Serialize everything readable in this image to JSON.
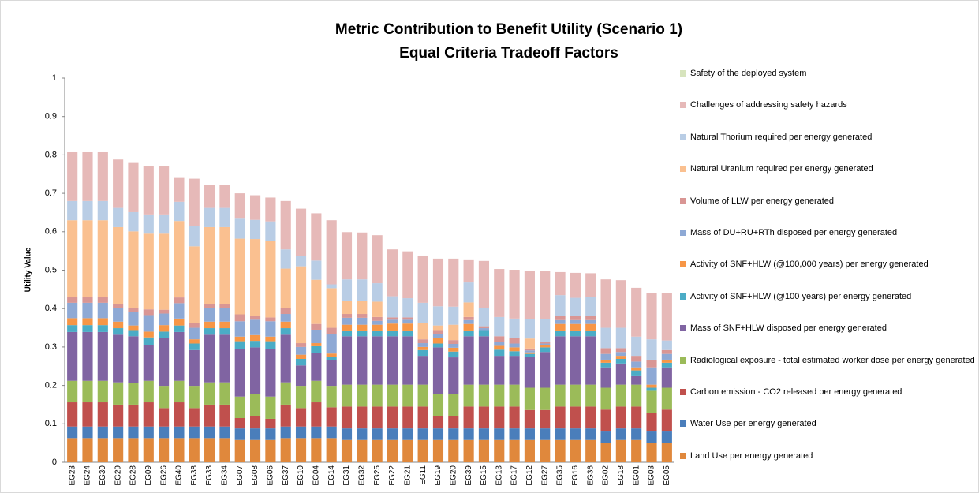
{
  "chart_data": {
    "type": "stacked_bar",
    "title": "Metric Contribution to Benefit Utility (Scenario 1)",
    "subtitle": "Equal Criteria Tradeoff Factors",
    "y_label": "Utility Value",
    "ylim": [
      0,
      1
    ],
    "yticks": [
      0,
      0.1,
      0.2,
      0.3,
      0.4,
      0.5,
      0.6,
      0.7,
      0.8,
      0.9,
      1
    ],
    "grid": false,
    "legend": "right",
    "categories": [
      "EG23",
      "EG24",
      "EG30",
      "EG29",
      "EG28",
      "EG09",
      "EG26",
      "EG40",
      "EG38",
      "EG33",
      "EG34",
      "EG07",
      "EG08",
      "EG06",
      "EG37",
      "EG10",
      "EG04",
      "EG14",
      "EG31",
      "EG32",
      "EG25",
      "EG22",
      "EG21",
      "EG11",
      "EG19",
      "EG20",
      "EG39",
      "EG15",
      "EG13",
      "EG17",
      "EG12",
      "EG27",
      "EG35",
      "EG16",
      "EG36",
      "EG02",
      "EG18",
      "EG01",
      "EG03",
      "EG05"
    ],
    "series": [
      {
        "name": "Land Use per energy generated",
        "color": "#e0883c",
        "values": [
          0.063,
          0.063,
          0.063,
          0.063,
          0.063,
          0.063,
          0.063,
          0.063,
          0.063,
          0.063,
          0.063,
          0.058,
          0.058,
          0.058,
          0.063,
          0.063,
          0.063,
          0.063,
          0.058,
          0.058,
          0.058,
          0.058,
          0.058,
          0.058,
          0.058,
          0.058,
          0.058,
          0.058,
          0.058,
          0.058,
          0.058,
          0.058,
          0.058,
          0.058,
          0.058,
          0.05,
          0.058,
          0.058,
          0.05,
          0.05
        ]
      },
      {
        "name": "Water Use per energy generated",
        "color": "#4a7ebb",
        "values": [
          0.03,
          0.03,
          0.03,
          0.03,
          0.03,
          0.03,
          0.03,
          0.03,
          0.03,
          0.03,
          0.03,
          0.03,
          0.03,
          0.03,
          0.03,
          0.03,
          0.03,
          0.03,
          0.03,
          0.03,
          0.03,
          0.03,
          0.03,
          0.03,
          0.03,
          0.03,
          0.03,
          0.03,
          0.03,
          0.03,
          0.03,
          0.03,
          0.03,
          0.03,
          0.03,
          0.03,
          0.03,
          0.03,
          0.03,
          0.03
        ]
      },
      {
        "name": "Carbon emission - CO2 released per energy generated",
        "color": "#c0504d",
        "values": [
          0.063,
          0.063,
          0.063,
          0.057,
          0.057,
          0.063,
          0.048,
          0.063,
          0.048,
          0.057,
          0.057,
          0.027,
          0.032,
          0.025,
          0.057,
          0.048,
          0.063,
          0.05,
          0.057,
          0.057,
          0.057,
          0.057,
          0.057,
          0.057,
          0.032,
          0.032,
          0.057,
          0.057,
          0.057,
          0.057,
          0.048,
          0.048,
          0.057,
          0.057,
          0.057,
          0.057,
          0.057,
          0.057,
          0.048,
          0.057
        ]
      },
      {
        "name": "Radiological exposure - total estimated worker dose per energy generated",
        "color": "#9bbb59",
        "values": [
          0.056,
          0.056,
          0.056,
          0.058,
          0.057,
          0.056,
          0.058,
          0.056,
          0.058,
          0.058,
          0.058,
          0.056,
          0.058,
          0.058,
          0.058,
          0.058,
          0.056,
          0.056,
          0.057,
          0.057,
          0.057,
          0.057,
          0.057,
          0.057,
          0.058,
          0.058,
          0.057,
          0.057,
          0.057,
          0.057,
          0.058,
          0.058,
          0.057,
          0.057,
          0.057,
          0.057,
          0.057,
          0.057,
          0.058,
          0.057
        ]
      },
      {
        "name": "Mass of SNF+HLW disposed per energy generated",
        "color": "#8064a2",
        "values": [
          0.127,
          0.127,
          0.127,
          0.124,
          0.121,
          0.093,
          0.124,
          0.127,
          0.093,
          0.124,
          0.124,
          0.124,
          0.121,
          0.124,
          0.124,
          0.053,
          0.073,
          0.066,
          0.126,
          0.126,
          0.126,
          0.126,
          0.126,
          0.075,
          0.121,
          0.095,
          0.126,
          0.126,
          0.075,
          0.075,
          0.08,
          0.093,
          0.126,
          0.126,
          0.126,
          0.053,
          0.055,
          0.022,
          0,
          0.053
        ]
      },
      {
        "name": "Activity of SNF+HLW (@100 years) per energy generated",
        "color": "#4bacc6",
        "values": [
          0.018,
          0.018,
          0.018,
          0.017,
          0.016,
          0.02,
          0.017,
          0.017,
          0.017,
          0.017,
          0.017,
          0.02,
          0.017,
          0.02,
          0.017,
          0.017,
          0.017,
          0.01,
          0.015,
          0.015,
          0.015,
          0.015,
          0.015,
          0.015,
          0.01,
          0.015,
          0.015,
          0.016,
          0.016,
          0.012,
          0.008,
          0.012,
          0.015,
          0.015,
          0.015,
          0.012,
          0.012,
          0.015,
          0.008,
          0.012
        ]
      },
      {
        "name": "Activity of SNF+HLW (@100,000 years) per energy generated",
        "color": "#f79646",
        "values": [
          0.018,
          0.018,
          0.018,
          0.017,
          0.012,
          0.015,
          0.017,
          0.018,
          0.011,
          0.017,
          0.017,
          0.012,
          0.015,
          0.012,
          0.017,
          0.011,
          0.008,
          0.008,
          0.015,
          0.015,
          0.015,
          0.018,
          0.018,
          0.008,
          0.015,
          0.01,
          0.017,
          0,
          0.01,
          0.01,
          0.004,
          0.005,
          0.017,
          0.017,
          0.017,
          0.008,
          0.008,
          0.008,
          0.008,
          0.008
        ]
      },
      {
        "name": "Mass of DU+RU+RTh  disposed per energy generated",
        "color": "#8ea9d5",
        "values": [
          0.04,
          0.04,
          0.04,
          0.036,
          0.035,
          0.043,
          0.03,
          0.04,
          0.03,
          0.036,
          0.036,
          0.04,
          0.04,
          0.04,
          0.02,
          0.02,
          0.035,
          0.05,
          0.018,
          0.018,
          0.01,
          0.01,
          0.01,
          0.01,
          0.01,
          0.01,
          0.01,
          0.005,
          0.01,
          0.01,
          0.005,
          0.005,
          0.01,
          0.01,
          0.01,
          0.015,
          0.01,
          0.015,
          0.045,
          0.015
        ]
      },
      {
        "name": "Volume of LLW per energy generated",
        "color": "#d99694",
        "values": [
          0.015,
          0.015,
          0.015,
          0.01,
          0.01,
          0.015,
          0.01,
          0.015,
          0.012,
          0.01,
          0.01,
          0.018,
          0.01,
          0.01,
          0.015,
          0.01,
          0.015,
          0.017,
          0.01,
          0.01,
          0.01,
          0.006,
          0.006,
          0.01,
          0.01,
          0.01,
          0.008,
          0.005,
          0.015,
          0.015,
          0.005,
          0.005,
          0.01,
          0.01,
          0.01,
          0.015,
          0.01,
          0.015,
          0.02,
          0.01
        ]
      },
      {
        "name": "Natural Uranium required per energy generated",
        "color": "#fac090",
        "values": [
          0.2,
          0.2,
          0.2,
          0.2,
          0.2,
          0.197,
          0.198,
          0.199,
          0.2,
          0.2,
          0.2,
          0.197,
          0.2,
          0.2,
          0.103,
          0.2,
          0.115,
          0.103,
          0.035,
          0.035,
          0.04,
          0,
          0,
          0.043,
          0.012,
          0.04,
          0.038,
          0,
          0,
          0,
          0.026,
          0,
          0,
          0,
          0,
          0,
          0,
          0,
          0,
          0
        ]
      },
      {
        "name": "Natural Thorium required per energy generated",
        "color": "#b9cde5",
        "values": [
          0.05,
          0.05,
          0.05,
          0.05,
          0.05,
          0.05,
          0.05,
          0.05,
          0.052,
          0.05,
          0.05,
          0.052,
          0.05,
          0.05,
          0.05,
          0.027,
          0.05,
          0.01,
          0.055,
          0.055,
          0.048,
          0.055,
          0.05,
          0.052,
          0.05,
          0.047,
          0.052,
          0.048,
          0.05,
          0.05,
          0.05,
          0.058,
          0.055,
          0.048,
          0.05,
          0.053,
          0.053,
          0.05,
          0.053,
          0.025
        ]
      },
      {
        "name": "Challenges of addressing safety hazards",
        "color": "#e6b9b8",
        "values": [
          0.127,
          0.127,
          0.127,
          0.126,
          0.128,
          0.125,
          0.125,
          0.062,
          0.124,
          0.06,
          0.06,
          0.066,
          0.064,
          0.062,
          0.126,
          0.123,
          0.123,
          0.167,
          0.123,
          0.122,
          0.125,
          0.122,
          0.122,
          0.123,
          0.124,
          0.125,
          0.06,
          0.122,
          0.125,
          0.127,
          0.127,
          0.125,
          0.06,
          0.065,
          0.062,
          0.126,
          0.124,
          0.127,
          0.121,
          0.124
        ]
      },
      {
        "name": "Safety of the deployed system",
        "color": "#d7e4bd",
        "values": [
          0,
          0,
          0,
          0,
          0,
          0,
          0,
          0,
          0,
          0,
          0,
          0,
          0,
          0,
          0,
          0,
          0,
          0,
          0,
          0,
          0,
          0,
          0,
          0,
          0,
          0,
          0,
          0,
          0,
          0,
          0,
          0,
          0,
          0,
          0,
          0,
          0,
          0,
          0,
          0
        ]
      }
    ]
  }
}
